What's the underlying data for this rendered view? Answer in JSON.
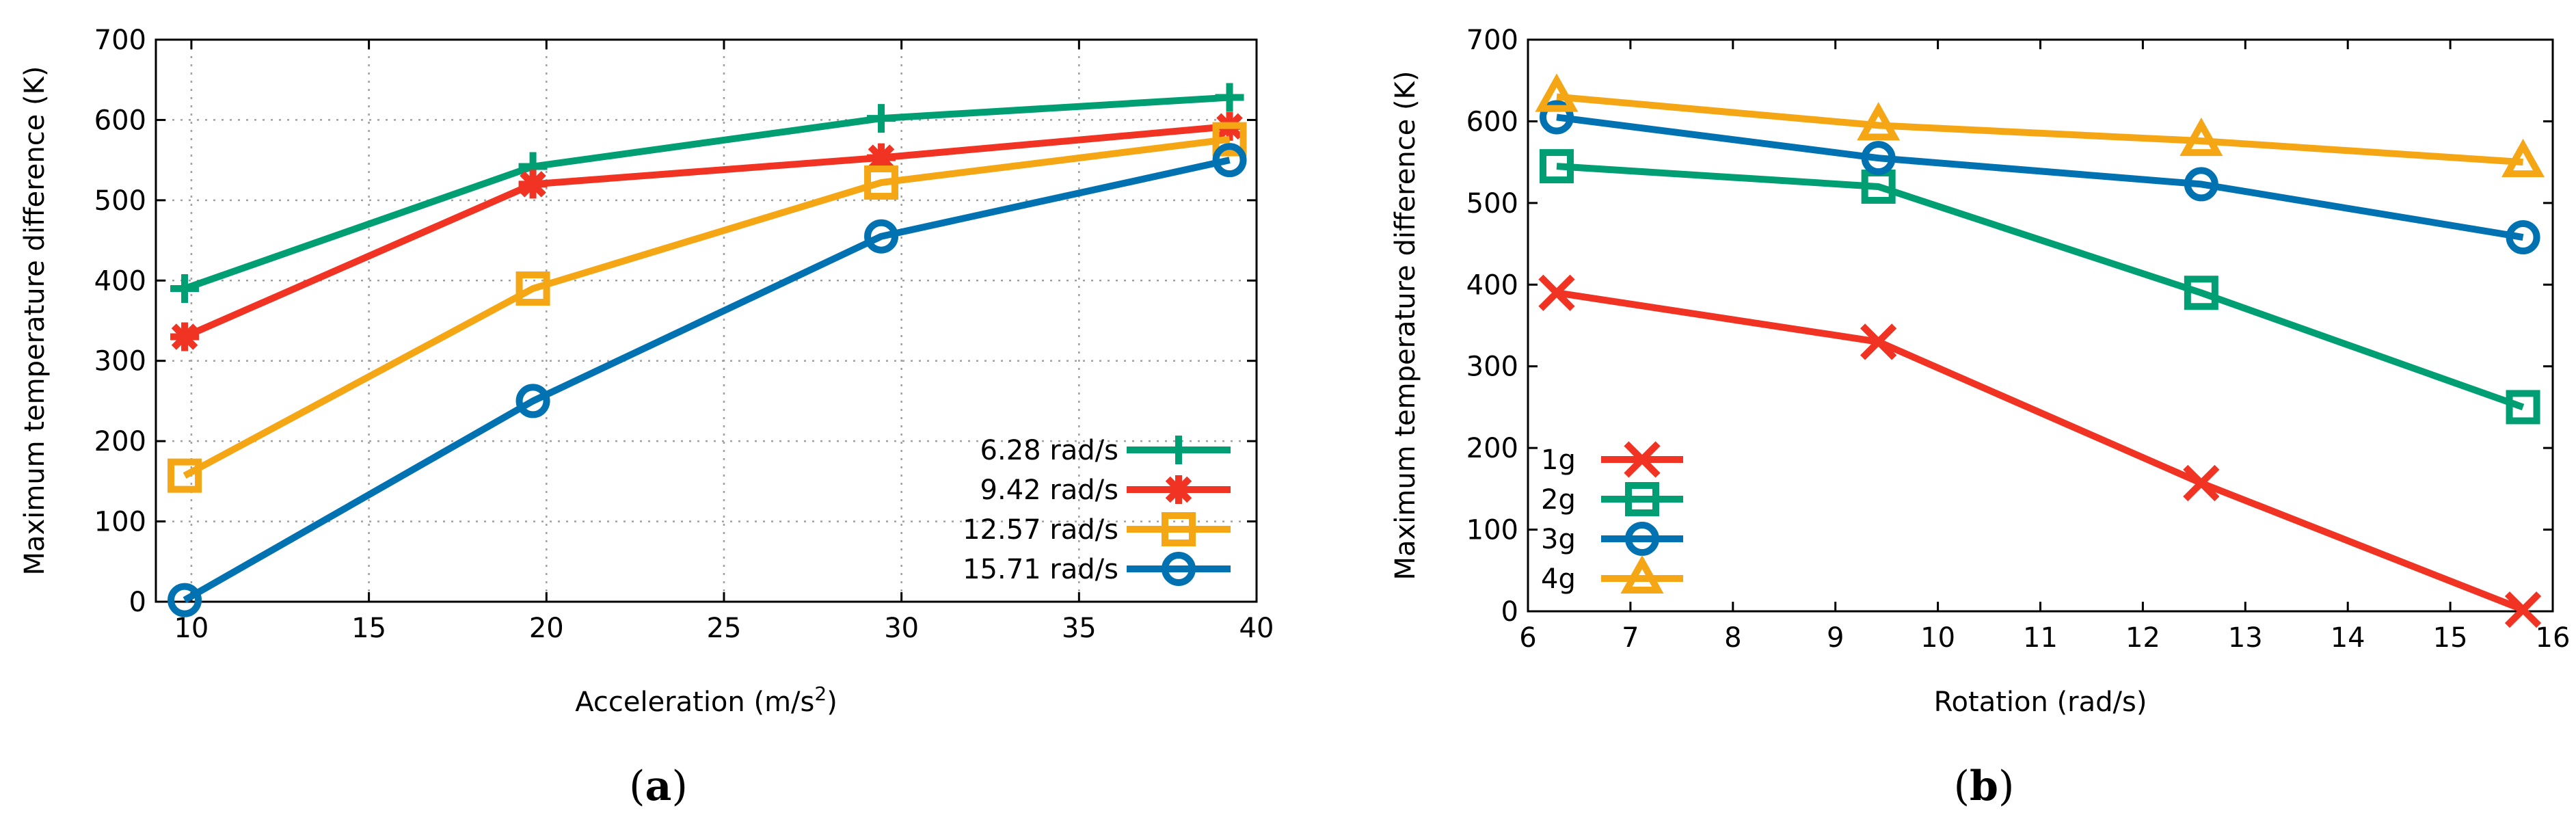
{
  "chart_data": [
    {
      "type": "line",
      "caption_letter": "a",
      "xlabel": "Acceleration (m/s",
      "xlabel_sup": "2",
      "xlabel_close": ")",
      "ylabel": "Maximum temperature difference (K)",
      "xlim": [
        9,
        40
      ],
      "ylim": [
        0,
        700
      ],
      "xticks": [
        10,
        15,
        20,
        25,
        30,
        35,
        40
      ],
      "yticks": [
        0,
        100,
        200,
        300,
        400,
        500,
        600,
        700
      ],
      "grid": true,
      "legend_position": "bottom-right",
      "x": [
        9.81,
        19.62,
        29.43,
        39.24
      ],
      "series": [
        {
          "name": "6.28 rad/s",
          "values": [
            390,
            542,
            602,
            628
          ],
          "color": "#009e73",
          "marker": "plus"
        },
        {
          "name": "9.42 rad/s",
          "values": [
            330,
            520,
            553,
            592
          ],
          "color": "#f03323",
          "marker": "star"
        },
        {
          "name": "12.57 rad/s",
          "values": [
            157,
            390,
            522,
            576
          ],
          "color": "#f5a614",
          "marker": "square"
        },
        {
          "name": "15.71 rad/s",
          "values": [
            2,
            250,
            455,
            550
          ],
          "color": "#0072b2",
          "marker": "circle"
        }
      ]
    },
    {
      "type": "line",
      "caption_letter": "b",
      "xlabel": "Rotation (rad/s)",
      "ylabel": "Maximum temperature difference (K)",
      "xlim": [
        6,
        16
      ],
      "ylim": [
        0,
        700
      ],
      "xticks": [
        6,
        7,
        8,
        9,
        10,
        11,
        12,
        13,
        14,
        15,
        16
      ],
      "yticks": [
        0,
        100,
        200,
        300,
        400,
        500,
        600,
        700
      ],
      "grid": false,
      "legend_position": "bottom-left",
      "x": [
        6.28,
        9.42,
        12.57,
        15.71
      ],
      "series": [
        {
          "name": "1g",
          "values": [
            390,
            330,
            157,
            2
          ],
          "color": "#f03323",
          "marker": "cross"
        },
        {
          "name": "2g",
          "values": [
            545,
            520,
            390,
            250
          ],
          "color": "#009e73",
          "marker": "square"
        },
        {
          "name": "3g",
          "values": [
            605,
            555,
            523,
            458
          ],
          "color": "#0072b2",
          "marker": "circle"
        },
        {
          "name": "4g",
          "values": [
            630,
            595,
            576,
            550
          ],
          "color": "#f5a614",
          "marker": "triangle"
        }
      ]
    }
  ]
}
